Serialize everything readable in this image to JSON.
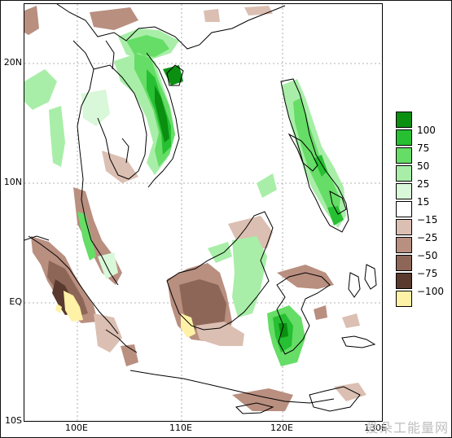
{
  "map": {
    "lat_labels": [
      "20N",
      "10N",
      "EQ",
      "10S"
    ],
    "lon_labels": [
      "100E",
      "110E",
      "120E",
      "130E"
    ]
  },
  "legend": {
    "labels": [
      "100",
      "75",
      "50",
      "25",
      "15",
      "−15",
      "−25",
      "−50",
      "−75",
      "−100"
    ],
    "colors": [
      "#0a8f10",
      "#26c032",
      "#66dd66",
      "#a8eea8",
      "#d9f7d9",
      "#ffffff",
      "#dbbfb2",
      "#b98f80",
      "#8d6657",
      "#5a3a2e",
      "#fff2a6"
    ]
  },
  "watermark": "爱朵工能量网"
}
